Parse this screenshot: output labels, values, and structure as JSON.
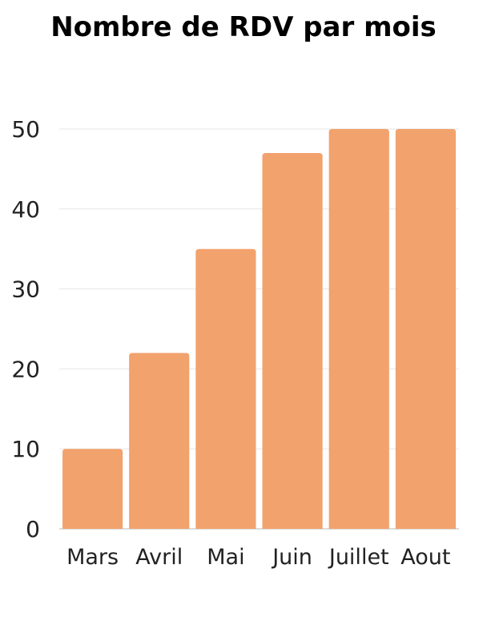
{
  "chart_data": {
    "type": "bar",
    "title": "Nombre de RDV par mois",
    "xlabel": "",
    "ylabel": "",
    "categories": [
      "Mars",
      "Avril",
      "Mai",
      "Juin",
      "Juillet",
      "Aout"
    ],
    "values": [
      10,
      22,
      35,
      47,
      50,
      50
    ],
    "ylim": [
      0,
      50
    ],
    "yticks": [
      0,
      10,
      20,
      30,
      40,
      50
    ],
    "grid": true,
    "legend": "none",
    "bar_color": "#f2a26d",
    "grid_color": "#e6e6e6",
    "axis_color": "#d0d0d0"
  }
}
